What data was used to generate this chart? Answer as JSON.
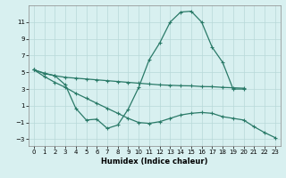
{
  "line1_x": [
    0,
    1,
    2,
    3,
    4,
    5,
    6,
    7,
    8,
    9,
    10,
    11,
    12,
    13,
    14,
    15,
    16,
    17,
    18,
    19,
    20
  ],
  "line1_y": [
    5.3,
    4.9,
    4.6,
    3.5,
    0.7,
    -0.7,
    -0.6,
    -1.7,
    -1.3,
    0.6,
    3.2,
    6.5,
    8.5,
    11.0,
    12.2,
    12.3,
    11.0,
    8.0,
    6.2,
    3.0,
    3.0
  ],
  "line2_x": [
    0,
    1,
    2,
    3,
    4,
    5,
    6,
    7,
    8,
    9,
    10,
    11,
    12,
    13,
    14,
    15,
    16,
    17,
    18,
    19,
    20
  ],
  "line2_y": [
    5.3,
    4.85,
    4.6,
    4.4,
    4.3,
    4.2,
    4.1,
    4.0,
    3.9,
    3.8,
    3.7,
    3.6,
    3.5,
    3.45,
    3.4,
    3.38,
    3.3,
    3.28,
    3.2,
    3.15,
    3.1
  ],
  "line3_x": [
    0,
    1,
    2,
    3,
    4,
    5,
    6,
    7,
    8,
    9,
    10,
    11,
    12,
    13,
    14,
    15,
    16,
    17,
    18,
    19,
    20,
    21,
    22,
    23
  ],
  "line3_y": [
    5.3,
    4.5,
    3.8,
    3.2,
    2.5,
    1.9,
    1.3,
    0.7,
    0.1,
    -0.5,
    -1.0,
    -1.1,
    -0.9,
    -0.5,
    -0.1,
    0.1,
    0.2,
    0.1,
    -0.3,
    -0.5,
    -0.7,
    -1.5,
    -2.2,
    -2.8
  ],
  "line_color": "#2a7a68",
  "bg_color": "#d8f0f0",
  "grid_color": "#b8d8d8",
  "xlabel": "Humidex (Indice chaleur)",
  "xlim": [
    -0.5,
    23.5
  ],
  "ylim": [
    -3.8,
    13.0
  ],
  "yticks": [
    -3,
    -1,
    1,
    3,
    5,
    7,
    9,
    11
  ],
  "xticks": [
    0,
    1,
    2,
    3,
    4,
    5,
    6,
    7,
    8,
    9,
    10,
    11,
    12,
    13,
    14,
    15,
    16,
    17,
    18,
    19,
    20,
    21,
    22,
    23
  ],
  "marker": "+",
  "markersize": 3.5,
  "linewidth": 0.9,
  "tick_fontsize": 5.0,
  "xlabel_fontsize": 6.0
}
